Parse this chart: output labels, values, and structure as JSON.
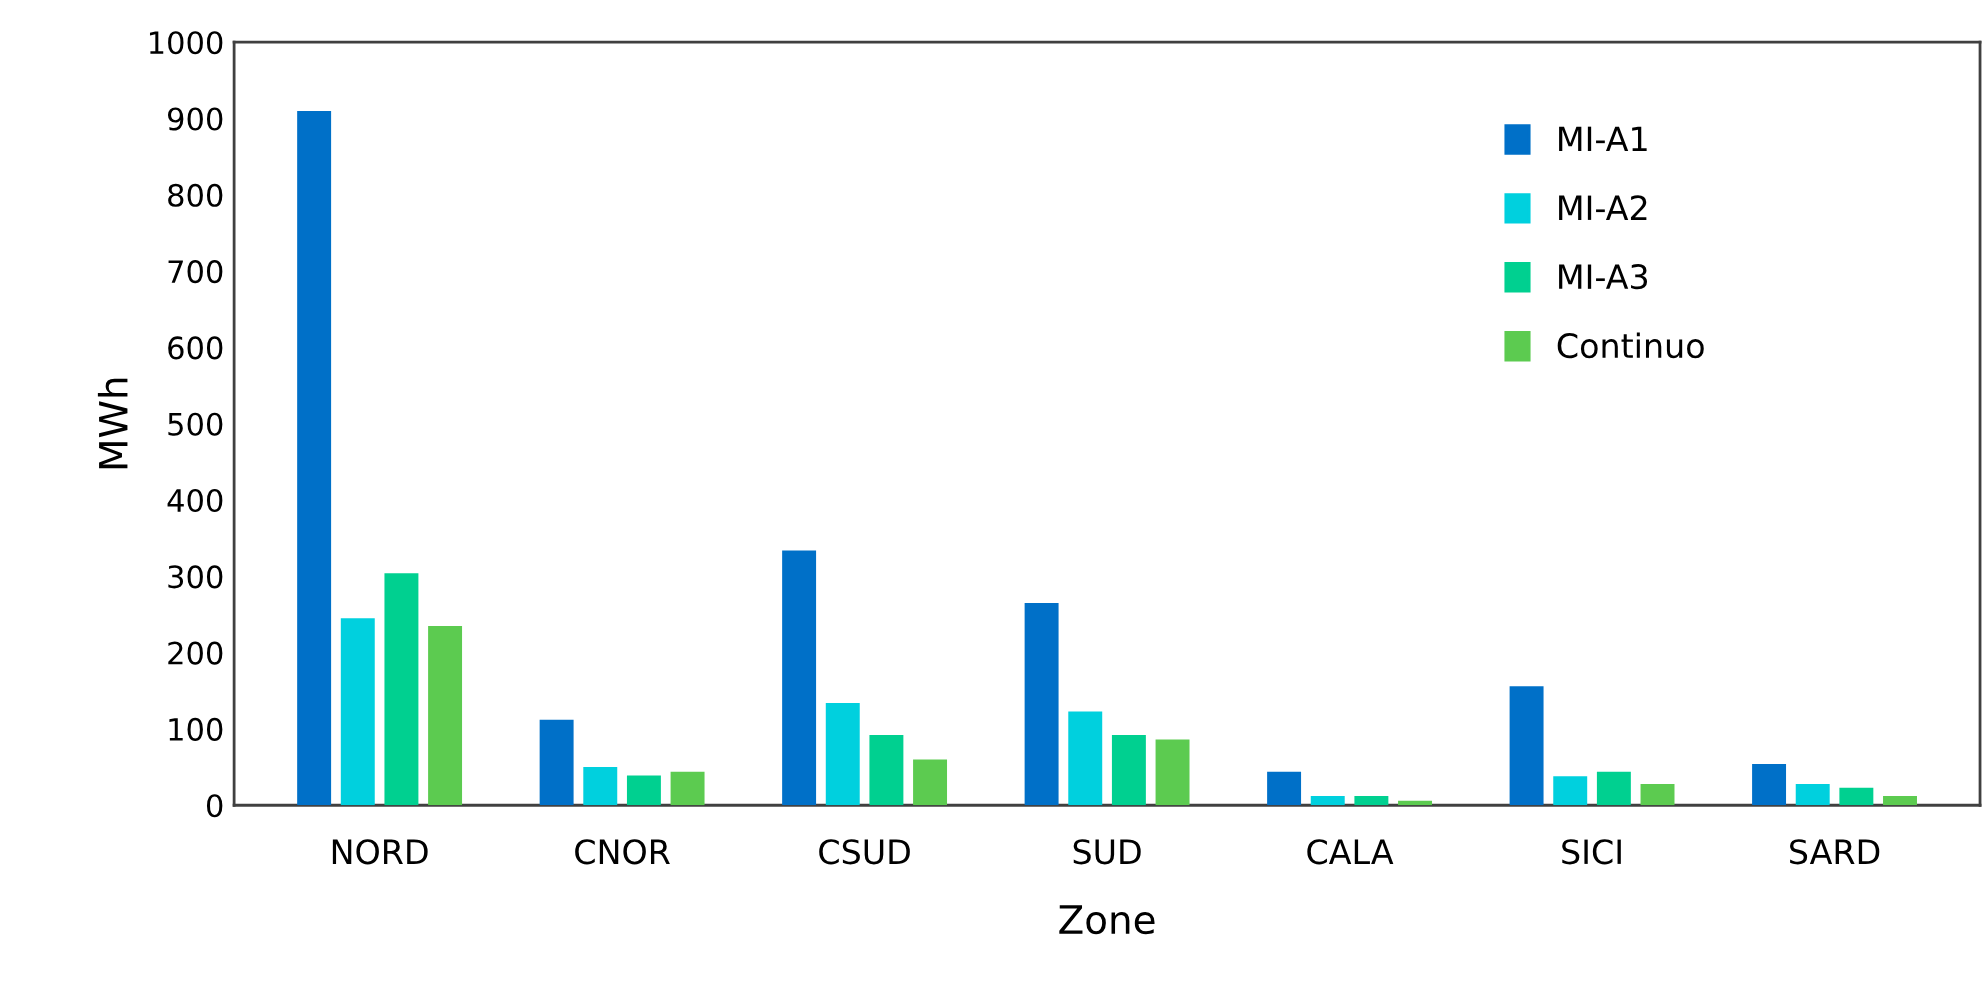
{
  "chart_data": {
    "type": "bar",
    "xlabel": "Zone",
    "ylabel": "MWh",
    "categories": [
      "NORD",
      "CNOR",
      "CSUD",
      "SUD",
      "CALA",
      "SICI",
      "SARD"
    ],
    "series": [
      {
        "name": "MI-A1",
        "color": "#0070c8",
        "values": [
          910,
          112,
          334,
          265,
          44,
          156,
          54
        ]
      },
      {
        "name": "MI-A2",
        "color": "#00d0de",
        "values": [
          245,
          50,
          134,
          123,
          12,
          38,
          28
        ]
      },
      {
        "name": "MI-A3",
        "color": "#00d090",
        "values": [
          304,
          39,
          92,
          92,
          12,
          44,
          23
        ]
      },
      {
        "name": "Continuo",
        "color": "#5ccb50",
        "values": [
          235,
          44,
          60,
          86,
          6,
          28,
          12
        ]
      }
    ],
    "ylim": [
      0,
      1000
    ],
    "yticks": [
      0,
      100,
      200,
      300,
      400,
      500,
      600,
      700,
      800,
      900,
      1000
    ],
    "grid": false,
    "legend": "top right"
  }
}
